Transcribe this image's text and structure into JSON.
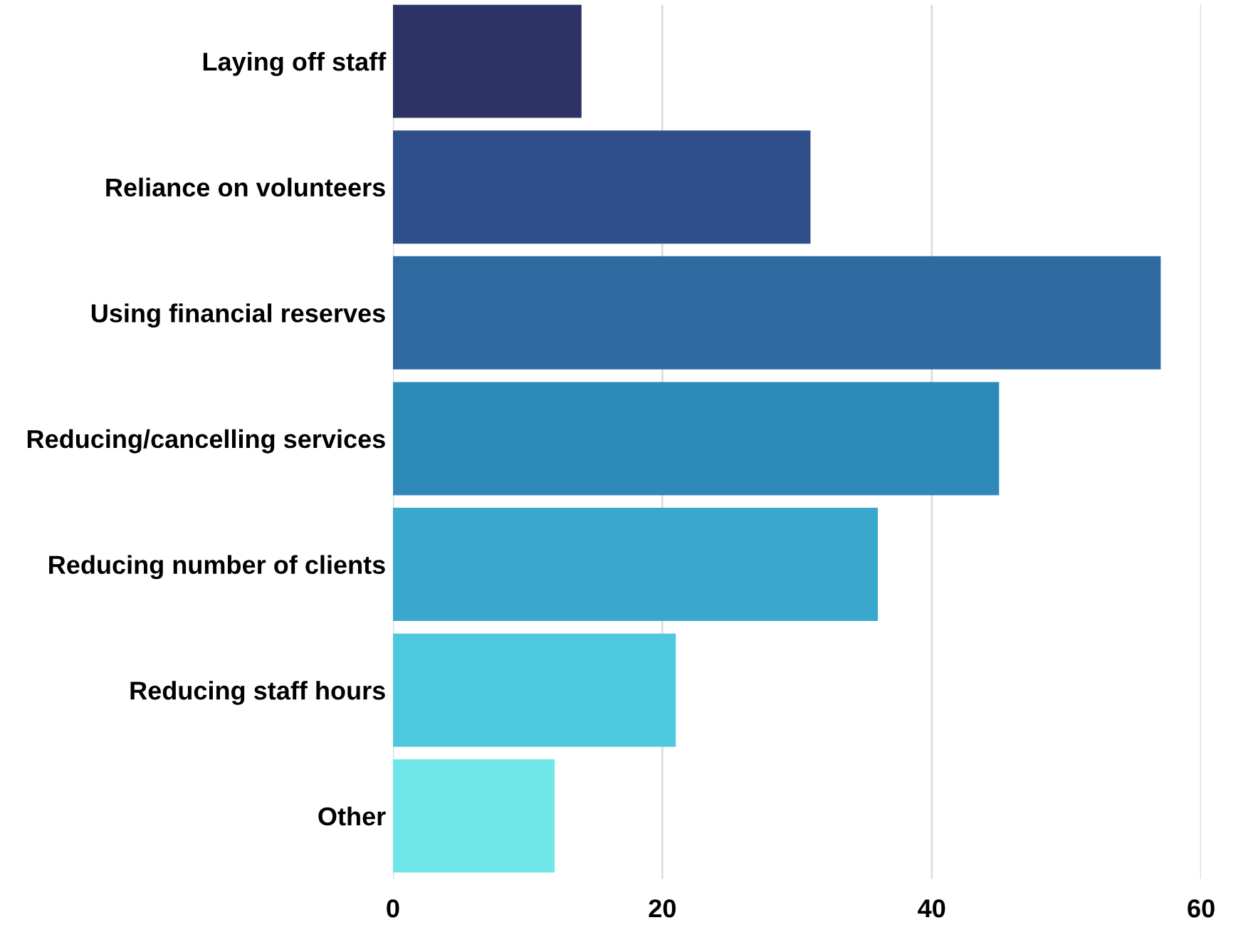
{
  "chart_data": {
    "type": "bar",
    "orientation": "horizontal",
    "categories": [
      "Laying off staff",
      "Reliance on volunteers",
      "Using financial reserves",
      "Reducing/cancelling services",
      "Reducing number of clients",
      "Reducing staff hours",
      "Other"
    ],
    "values": [
      14,
      31,
      57,
      45,
      36,
      21,
      12
    ],
    "colors": [
      "#2e3366",
      "#2f4f8a",
      "#2e6aa0",
      "#2d8ab8",
      "#39a8cc",
      "#4ec8dd",
      "#6ee6e8"
    ],
    "xlim": [
      0,
      60
    ],
    "xticks": [
      0,
      20,
      40,
      60
    ],
    "grid": "x"
  }
}
